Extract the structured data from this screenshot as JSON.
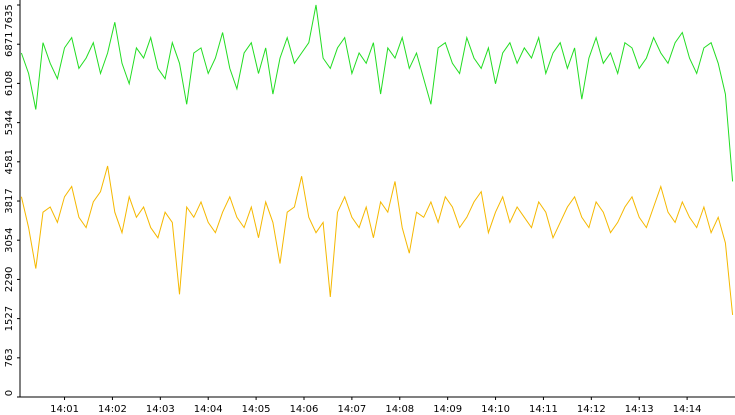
{
  "chart_data": {
    "type": "line",
    "x": [
      0.1,
      0.25,
      0.4,
      0.55,
      0.7,
      0.85,
      1,
      1.15,
      1.3,
      1.45,
      1.6,
      1.75,
      1.9,
      2.05,
      2.2,
      2.35,
      2.5,
      2.65,
      2.8,
      2.95,
      3.1,
      3.25,
      3.4,
      3.55,
      3.7,
      3.85,
      4,
      4.15,
      4.3,
      4.45,
      4.6,
      4.75,
      4.9,
      5.05,
      5.2,
      5.35,
      5.5,
      5.65,
      5.8,
      5.95,
      6.1,
      6.25,
      6.4,
      6.55,
      6.7,
      6.85,
      7,
      7.15,
      7.3,
      7.45,
      7.6,
      7.75,
      7.9,
      8.05,
      8.2,
      8.35,
      8.5,
      8.65,
      8.8,
      8.95,
      9.1,
      9.25,
      9.4,
      9.55,
      9.7,
      9.85,
      10,
      10.15,
      10.3,
      10.45,
      10.6,
      10.75,
      10.9,
      11.05,
      11.2,
      11.35,
      11.5,
      11.65,
      11.8,
      11.95,
      12.1,
      12.25,
      12.4,
      12.55,
      12.7,
      12.85,
      13,
      13.15,
      13.3,
      13.45,
      13.6,
      13.75,
      13.9,
      14.05,
      14.2,
      14.35,
      14.5,
      14.65,
      14.8,
      14.95
    ],
    "series": [
      {
        "name": "green",
        "color": "#22dd22",
        "values": [
          6700,
          6300,
          5600,
          6900,
          6500,
          6200,
          6800,
          7000,
          6400,
          6600,
          6900,
          6300,
          6700,
          7300,
          6500,
          6100,
          6800,
          6600,
          7000,
          6400,
          6200,
          6900,
          6500,
          5700,
          6700,
          6800,
          6300,
          6600,
          7100,
          6400,
          6000,
          6700,
          6900,
          6300,
          6800,
          5900,
          6600,
          7000,
          6500,
          6700,
          6900,
          7635,
          6600,
          6400,
          6800,
          7000,
          6300,
          6700,
          6500,
          6900,
          5900,
          6800,
          6600,
          7000,
          6400,
          6700,
          6200,
          5700,
          6800,
          6900,
          6500,
          6300,
          7000,
          6600,
          6400,
          6800,
          6100,
          6700,
          6900,
          6500,
          6800,
          6600,
          7000,
          6300,
          6700,
          6900,
          6400,
          6800,
          5800,
          6600,
          7000,
          6500,
          6700,
          6300,
          6900,
          6800,
          6400,
          6600,
          7000,
          6700,
          6500,
          6900,
          7100,
          6600,
          6300,
          6800,
          6900,
          6500,
          5900,
          4200
        ]
      },
      {
        "name": "yellow",
        "color": "#f5b800",
        "values": [
          3900,
          3300,
          2500,
          3600,
          3700,
          3400,
          3900,
          4100,
          3500,
          3300,
          3800,
          4000,
          4500,
          3600,
          3200,
          3900,
          3500,
          3700,
          3300,
          3100,
          3600,
          3400,
          2000,
          3700,
          3500,
          3800,
          3400,
          3200,
          3600,
          3900,
          3500,
          3300,
          3700,
          3100,
          3800,
          3400,
          2600,
          3600,
          3700,
          4300,
          3500,
          3200,
          3400,
          1950,
          3600,
          3900,
          3500,
          3300,
          3700,
          3100,
          3800,
          3600,
          4200,
          3300,
          2800,
          3600,
          3500,
          3800,
          3400,
          3900,
          3700,
          3300,
          3500,
          3800,
          4000,
          3200,
          3600,
          3900,
          3400,
          3700,
          3500,
          3300,
          3800,
          3600,
          3100,
          3400,
          3700,
          3900,
          3500,
          3300,
          3800,
          3600,
          3200,
          3400,
          3700,
          3900,
          3500,
          3300,
          3700,
          4100,
          3600,
          3400,
          3800,
          3500,
          3300,
          3700,
          3200,
          3500,
          3000,
          1600
        ]
      }
    ],
    "xlim": [
      0.07,
      15
    ],
    "xticks": [
      {
        "value": 1,
        "label": "14:01"
      },
      {
        "value": 2,
        "label": "14:02"
      },
      {
        "value": 3,
        "label": "14:03"
      },
      {
        "value": 4,
        "label": "14:04"
      },
      {
        "value": 5,
        "label": "14:05"
      },
      {
        "value": 6,
        "label": "14:06"
      },
      {
        "value": 7,
        "label": "14:07"
      },
      {
        "value": 8,
        "label": "14:08"
      },
      {
        "value": 9,
        "label": "14:09"
      },
      {
        "value": 10,
        "label": "14:10"
      },
      {
        "value": 11,
        "label": "14:11"
      },
      {
        "value": 12,
        "label": "14:12"
      },
      {
        "value": 13,
        "label": "14:13"
      },
      {
        "value": 14,
        "label": "14:14"
      }
    ],
    "ylim": [
      0,
      7635
    ],
    "yticks": [
      0,
      763,
      1527,
      2290,
      3054,
      3817,
      4581,
      5344,
      6108,
      6871,
      7635
    ]
  }
}
